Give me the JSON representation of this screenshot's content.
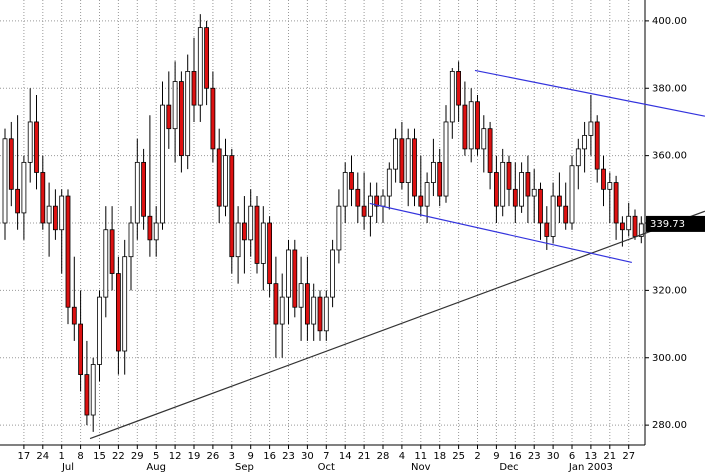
{
  "chart_data": {
    "type": "candlestick",
    "ylim": [
      274.1,
      406.2
    ],
    "yticks": [
      {
        "value": 280,
        "label": "280.00"
      },
      {
        "value": 300,
        "label": "300.00"
      },
      {
        "value": 320,
        "label": "320.00"
      },
      {
        "value": 340,
        "label": "340.00"
      },
      {
        "value": 360,
        "label": "360.00"
      },
      {
        "value": 380,
        "label": "380.00"
      },
      {
        "value": 400,
        "label": "400.00"
      }
    ],
    "grid": true,
    "up_color": "#ffffff",
    "down_color": "#dd1111",
    "last_price": 339.73,
    "categories": [
      null,
      null,
      null,
      "17",
      null,
      null,
      "24",
      null,
      null,
      "1",
      null,
      null,
      "8",
      null,
      null,
      "15",
      null,
      null,
      "22",
      null,
      null,
      "29",
      null,
      null,
      "5",
      null,
      null,
      "12",
      null,
      null,
      "19",
      null,
      null,
      "26",
      null,
      null,
      "3",
      null,
      null,
      "9",
      null,
      null,
      "16",
      null,
      null,
      "23",
      null,
      null,
      "30",
      null,
      null,
      "7",
      null,
      null,
      "14",
      null,
      null,
      "21",
      null,
      null,
      "28",
      null,
      null,
      "4",
      null,
      null,
      "11",
      null,
      null,
      "18",
      null,
      null,
      "25",
      null,
      null,
      "2",
      null,
      null,
      "9",
      null,
      null,
      "16",
      null,
      null,
      "23",
      null,
      null,
      "30",
      null,
      null,
      "6",
      null,
      null,
      "13",
      null,
      null,
      "21",
      null,
      null,
      "27",
      null,
      null
    ],
    "months": [
      null,
      null,
      null,
      null,
      null,
      null,
      null,
      null,
      null,
      null,
      "Jul",
      null,
      null,
      null,
      null,
      null,
      null,
      null,
      null,
      null,
      null,
      null,
      null,
      null,
      "Aug",
      null,
      null,
      null,
      null,
      null,
      null,
      null,
      null,
      null,
      null,
      null,
      null,
      null,
      "Sep",
      null,
      null,
      null,
      null,
      null,
      null,
      null,
      null,
      null,
      null,
      null,
      null,
      "Oct",
      null,
      null,
      null,
      null,
      null,
      null,
      null,
      null,
      null,
      null,
      null,
      null,
      null,
      null,
      "Nov",
      null,
      null,
      null,
      null,
      null,
      null,
      null,
      null,
      null,
      null,
      null,
      null,
      null,
      "Dec",
      null,
      null,
      null,
      null,
      null,
      null,
      null,
      null,
      null,
      null,
      null,
      null,
      "Jan 2003",
      null,
      null,
      null,
      null,
      null,
      null,
      null,
      null
    ],
    "candles": [
      [
        340,
        368,
        335,
        365
      ],
      [
        365,
        370,
        345,
        350
      ],
      [
        350,
        372,
        338,
        343
      ],
      [
        343,
        360,
        335,
        358
      ],
      [
        358,
        380,
        352,
        370
      ],
      [
        370,
        378,
        350,
        355
      ],
      [
        355,
        360,
        338,
        340
      ],
      [
        340,
        352,
        330,
        345
      ],
      [
        345,
        350,
        335,
        338
      ],
      [
        338,
        350,
        325,
        348
      ],
      [
        348,
        350,
        310,
        315
      ],
      [
        315,
        330,
        305,
        310
      ],
      [
        310,
        320,
        290,
        295
      ],
      [
        295,
        305,
        280,
        283
      ],
      [
        283,
        300,
        278,
        298
      ],
      [
        298,
        320,
        293,
        318
      ],
      [
        318,
        345,
        312,
        338
      ],
      [
        338,
        345,
        320,
        325
      ],
      [
        325,
        330,
        295,
        302
      ],
      [
        302,
        335,
        295,
        330
      ],
      [
        330,
        345,
        320,
        340
      ],
      [
        340,
        365,
        335,
        358
      ],
      [
        358,
        362,
        338,
        342
      ],
      [
        342,
        372,
        330,
        335
      ],
      [
        335,
        345,
        330,
        340
      ],
      [
        340,
        382,
        338,
        375
      ],
      [
        375,
        385,
        362,
        368
      ],
      [
        368,
        388,
        358,
        382
      ],
      [
        382,
        385,
        355,
        360
      ],
      [
        360,
        390,
        356,
        385
      ],
      [
        385,
        395,
        370,
        375
      ],
      [
        375,
        402,
        370,
        398
      ],
      [
        398,
        400,
        375,
        380
      ],
      [
        380,
        385,
        358,
        362
      ],
      [
        362,
        368,
        340,
        345
      ],
      [
        345,
        365,
        342,
        360
      ],
      [
        360,
        362,
        325,
        330
      ],
      [
        330,
        345,
        322,
        340
      ],
      [
        340,
        348,
        325,
        335
      ],
      [
        335,
        350,
        330,
        345
      ],
      [
        345,
        348,
        325,
        328
      ],
      [
        328,
        345,
        320,
        340
      ],
      [
        340,
        342,
        318,
        322
      ],
      [
        322,
        330,
        300,
        310
      ],
      [
        310,
        325,
        300,
        318
      ],
      [
        318,
        335,
        310,
        332
      ],
      [
        332,
        335,
        312,
        315
      ],
      [
        315,
        330,
        305,
        322
      ],
      [
        322,
        330,
        305,
        310
      ],
      [
        310,
        322,
        305,
        318
      ],
      [
        318,
        320,
        305,
        308
      ],
      [
        308,
        320,
        305,
        318
      ],
      [
        318,
        335,
        315,
        332
      ],
      [
        332,
        350,
        328,
        345
      ],
      [
        345,
        358,
        340,
        355
      ],
      [
        355,
        360,
        345,
        350
      ],
      [
        350,
        355,
        340,
        345
      ],
      [
        345,
        355,
        338,
        342
      ],
      [
        342,
        352,
        336,
        348
      ],
      [
        348,
        352,
        340,
        345
      ],
      [
        345,
        350,
        340,
        348
      ],
      [
        348,
        358,
        344,
        356
      ],
      [
        356,
        368,
        352,
        365
      ],
      [
        365,
        370,
        350,
        352
      ],
      [
        352,
        368,
        345,
        365
      ],
      [
        365,
        368,
        345,
        348
      ],
      [
        348,
        360,
        342,
        345
      ],
      [
        345,
        355,
        340,
        352
      ],
      [
        352,
        365,
        348,
        358
      ],
      [
        358,
        362,
        345,
        348
      ],
      [
        348,
        375,
        346,
        370
      ],
      [
        370,
        386,
        365,
        385
      ],
      [
        385,
        388,
        370,
        375
      ],
      [
        375,
        382,
        360,
        362
      ],
      [
        362,
        380,
        358,
        376
      ],
      [
        376,
        378,
        360,
        362
      ],
      [
        362,
        372,
        355,
        368
      ],
      [
        368,
        370,
        350,
        355
      ],
      [
        355,
        360,
        340,
        345
      ],
      [
        345,
        362,
        342,
        358
      ],
      [
        358,
        360,
        345,
        350
      ],
      [
        350,
        358,
        340,
        345
      ],
      [
        345,
        358,
        343,
        355
      ],
      [
        355,
        360,
        340,
        348
      ],
      [
        348,
        356,
        340,
        350
      ],
      [
        350,
        352,
        335,
        340
      ],
      [
        340,
        345,
        332,
        336
      ],
      [
        336,
        352,
        334,
        348
      ],
      [
        348,
        355,
        340,
        345
      ],
      [
        345,
        352,
        338,
        340
      ],
      [
        340,
        360,
        338,
        357
      ],
      [
        357,
        365,
        350,
        362
      ],
      [
        362,
        370,
        355,
        366
      ],
      [
        366,
        378,
        360,
        370
      ],
      [
        370,
        372,
        352,
        356
      ],
      [
        356,
        360,
        345,
        350
      ],
      [
        350,
        355,
        340,
        352
      ],
      [
        352,
        354,
        335,
        340
      ],
      [
        340,
        342,
        333,
        338
      ],
      [
        338,
        346,
        336,
        342
      ],
      [
        342,
        344,
        335,
        336
      ],
      [
        336,
        342,
        334,
        339.73
      ]
    ],
    "trendlines": [
      {
        "color": "#333333",
        "from": [
          13.5,
          276
        ],
        "to": [
          111.1,
          343.5
        ]
      },
      {
        "color": "#3333dd",
        "from": [
          74.6,
          385.3
        ],
        "to": [
          111.1,
          371.7
        ]
      },
      {
        "color": "#3333dd",
        "from": [
          57.9,
          345.8
        ],
        "to": [
          99.5,
          328.3
        ]
      }
    ]
  }
}
